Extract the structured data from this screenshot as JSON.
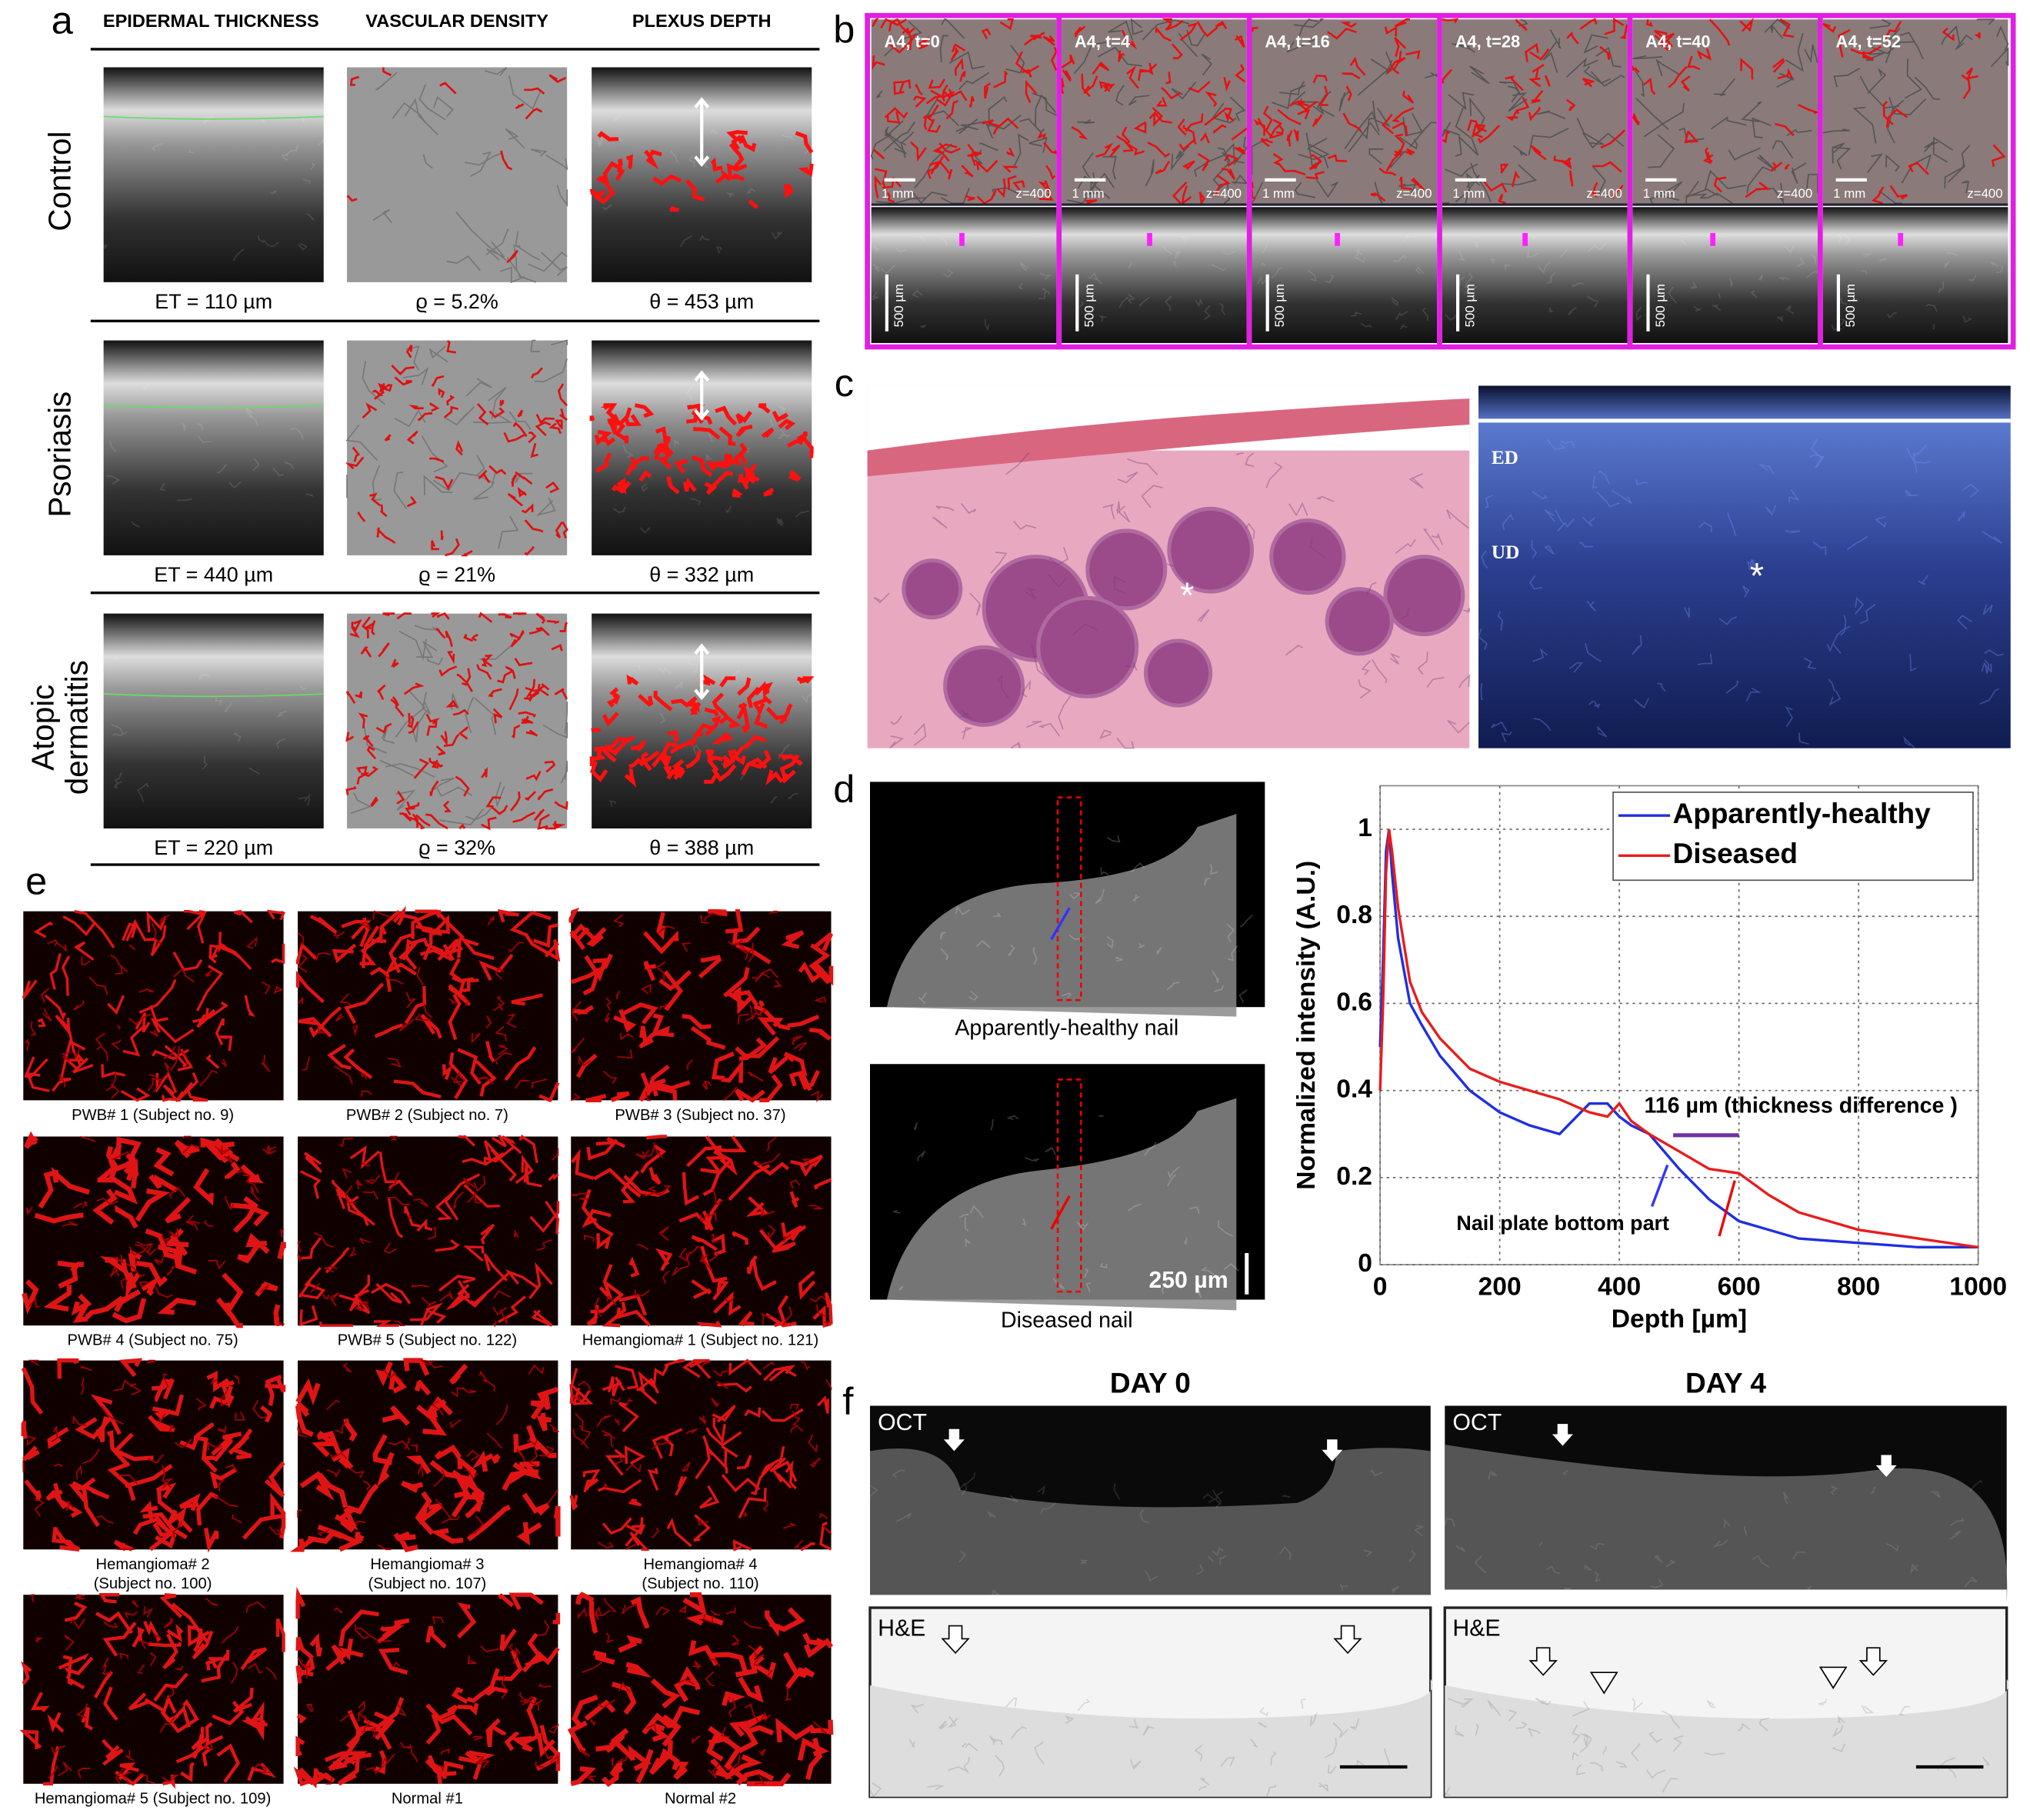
{
  "panel_a": {
    "letter": "a",
    "headers": [
      "EPIDERMAL THICKNESS",
      "VASCULAR DENSITY",
      "PLEXUS DEPTH"
    ],
    "rows": [
      {
        "label_lines": [
          "Control"
        ],
        "measures": [
          "ET = 110 µm",
          "ϱ = 5.2%",
          "θ = 453 µm"
        ]
      },
      {
        "label_lines": [
          "Psoriasis"
        ],
        "measures": [
          "ET = 440 µm",
          "ϱ = 21%",
          "θ = 332 µm"
        ]
      },
      {
        "label_lines": [
          "Atopic",
          "dermatitis"
        ],
        "measures": [
          "ET = 220 µm",
          "ϱ = 32%",
          "θ = 388 µm"
        ]
      }
    ]
  },
  "panel_b": {
    "letter": "b",
    "frames": [
      "A4, t=0",
      "A4, t=4",
      "A4, t=16",
      "A4, t=28",
      "A4, t=40",
      "A4, t=52"
    ],
    "scale_bar": "1 mm",
    "depth": "z=400",
    "depth_bar": "500 µm"
  },
  "panel_c": {
    "letter": "c",
    "labels": [
      "ED",
      "UD"
    ],
    "marker": "*"
  },
  "panel_d": {
    "letter": "d",
    "captions": [
      "Apparently-healthy nail",
      "Diseased nail"
    ],
    "scale_bar": "250 µm"
  },
  "chart_data": {
    "type": "line",
    "xlabel": "Depth [µm]",
    "ylabel": "Normalized intensity (A.U.)",
    "x": [
      0,
      5,
      10,
      15,
      20,
      30,
      50,
      70,
      100,
      150,
      200,
      250,
      300,
      350,
      380,
      400,
      420,
      450,
      500,
      550,
      600,
      650,
      700,
      800,
      900,
      1000
    ],
    "series": [
      {
        "name": "Apparently-healthy",
        "color": "#1f2fe0",
        "values": [
          0.5,
          0.7,
          0.95,
          1.0,
          0.9,
          0.75,
          0.6,
          0.55,
          0.48,
          0.4,
          0.35,
          0.32,
          0.3,
          0.37,
          0.37,
          0.34,
          0.32,
          0.3,
          0.22,
          0.15,
          0.1,
          0.08,
          0.06,
          0.05,
          0.04,
          0.04
        ]
      },
      {
        "name": "Diseased",
        "color": "#e81c1c",
        "values": [
          0.4,
          0.6,
          0.9,
          1.0,
          0.95,
          0.82,
          0.65,
          0.58,
          0.52,
          0.45,
          0.42,
          0.4,
          0.38,
          0.35,
          0.34,
          0.37,
          0.33,
          0.3,
          0.26,
          0.22,
          0.21,
          0.16,
          0.12,
          0.08,
          0.06,
          0.04
        ]
      }
    ],
    "xlim": [
      0,
      1000
    ],
    "ylim": [
      0,
      1.1
    ],
    "xticks": [
      0,
      200,
      400,
      600,
      800,
      1000
    ],
    "yticks": [
      0,
      0.2,
      0.4,
      0.6,
      0.8,
      1
    ],
    "grid": true,
    "legend": "upper-right",
    "annotations": [
      "116 µm (thickness difference )",
      "Nail plate bottom part"
    ]
  },
  "panel_e": {
    "letter": "e",
    "captions": [
      [
        "PWB# 1 (Subject no. 9)"
      ],
      [
        "PWB# 2 (Subject no. 7)"
      ],
      [
        "PWB# 3 (Subject no. 37)"
      ],
      [
        "PWB# 4 (Subject no. 75)"
      ],
      [
        "PWB# 5 (Subject no. 122)"
      ],
      [
        "Hemangioma# 1 (Subject no. 121)"
      ],
      [
        "Hemangioma# 2",
        "(Subject no. 100)"
      ],
      [
        "Hemangioma# 3",
        "(Subject no. 107)"
      ],
      [
        "Hemangioma# 4",
        "(Subject no. 110)"
      ],
      [
        "Hemangioma# 5 (Subject no. 109)"
      ],
      [
        "Normal #1"
      ],
      [
        "Normal #2"
      ]
    ]
  },
  "panel_f": {
    "letter": "f",
    "days": [
      "DAY 0",
      "DAY 4"
    ],
    "oct": "OCT",
    "he": "H&E"
  }
}
